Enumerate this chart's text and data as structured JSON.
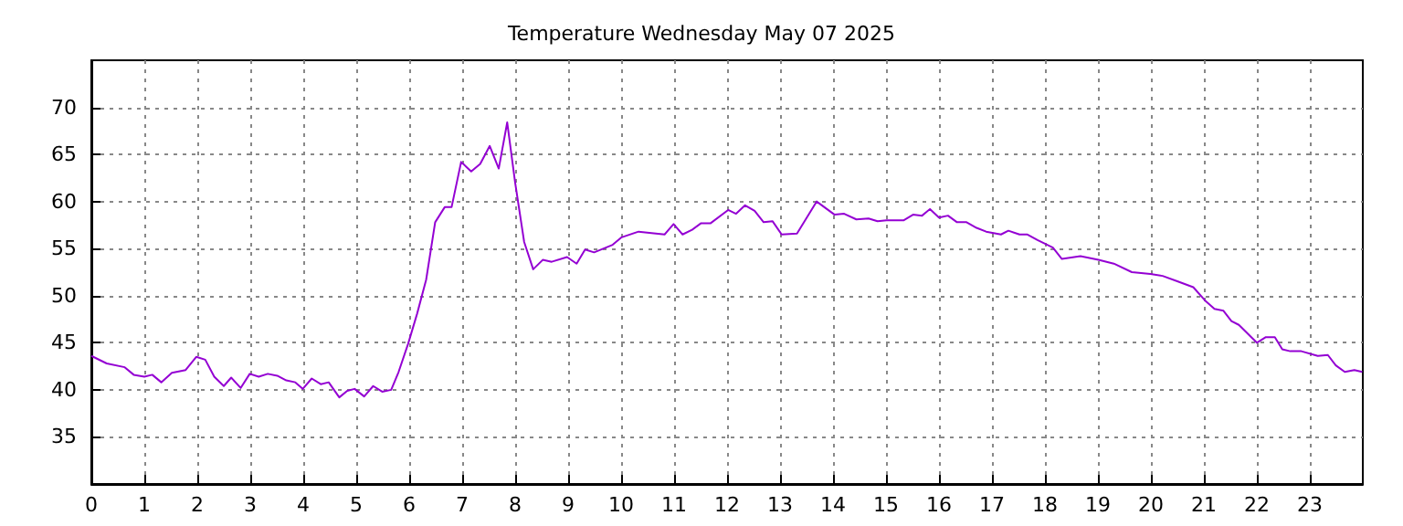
{
  "chart_data": {
    "type": "line",
    "title": "Temperature Wednesday May 07 2025",
    "x": [
      0,
      0.29,
      0.63,
      0.8,
      1.0,
      1.15,
      1.32,
      1.52,
      1.78,
      1.98,
      2.15,
      2.32,
      2.5,
      2.64,
      2.82,
      2.99,
      3.16,
      3.33,
      3.51,
      3.68,
      3.85,
      3.99,
      4.16,
      4.33,
      4.48,
      4.68,
      4.83,
      4.97,
      5.15,
      5.32,
      5.49,
      5.66,
      5.8,
      5.98,
      6.15,
      6.32,
      6.49,
      6.67,
      6.8,
      6.98,
      7.17,
      7.34,
      7.52,
      7.69,
      7.85,
      8.0,
      8.17,
      8.34,
      8.52,
      8.69,
      8.98,
      9.16,
      9.32,
      9.49,
      9.84,
      10.01,
      10.33,
      10.82,
      10.99,
      11.16,
      11.34,
      11.51,
      11.69,
      12.02,
      12.17,
      12.34,
      12.52,
      12.69,
      12.86,
      13.03,
      13.32,
      13.69,
      14.03,
      14.21,
      14.44,
      14.67,
      14.84,
      15.01,
      15.33,
      15.51,
      15.68,
      15.83,
      16.0,
      16.17,
      16.34,
      16.52,
      16.71,
      16.89,
      17.17,
      17.31,
      17.52,
      17.67,
      17.86,
      18.15,
      18.32,
      18.67,
      19.01,
      19.3,
      19.64,
      19.99,
      20.22,
      20.51,
      20.8,
      21.02,
      21.2,
      21.37,
      21.52,
      21.66,
      22.0,
      22.17,
      22.34,
      22.48,
      22.63,
      22.84,
      23.15,
      23.34,
      23.49,
      23.66,
      23.84,
      23.99
    ],
    "series": [
      {
        "color": "#9400d3",
        "values": [
          43.6,
          42.8,
          42.4,
          41.6,
          41.4,
          41.6,
          40.8,
          41.8,
          42.1,
          43.5,
          43.2,
          41.4,
          40.4,
          41.3,
          40.2,
          41.7,
          41.4,
          41.7,
          41.5,
          41.0,
          40.8,
          40.1,
          41.2,
          40.6,
          40.8,
          39.2,
          39.9,
          40.1,
          39.3,
          40.4,
          39.8,
          40.0,
          41.9,
          44.9,
          48.1,
          51.7,
          57.8,
          59.4,
          59.4,
          64.2,
          63.2,
          64.0,
          65.9,
          63.5,
          68.4,
          62.0,
          55.7,
          52.8,
          53.8,
          53.6,
          54.1,
          53.4,
          54.9,
          54.6,
          55.4,
          56.2,
          56.8,
          56.5,
          57.6,
          56.5,
          57.0,
          57.7,
          57.7,
          59.1,
          58.7,
          59.6,
          59.0,
          57.8,
          57.9,
          56.5,
          56.6,
          60.0,
          58.6,
          58.7,
          58.1,
          58.2,
          57.9,
          58.0,
          58.0,
          58.6,
          58.5,
          59.2,
          58.3,
          58.5,
          57.8,
          57.8,
          57.2,
          56.8,
          56.5,
          56.9,
          56.5,
          56.5,
          55.9,
          55.1,
          53.9,
          54.2,
          53.8,
          53.4,
          52.5,
          52.3,
          52.1,
          51.5,
          50.9,
          49.5,
          48.6,
          48.4,
          47.3,
          46.9,
          45.0,
          45.6,
          45.6,
          44.3,
          44.1,
          44.1,
          43.6,
          43.7,
          42.6,
          41.9,
          42.1,
          41.9
        ]
      }
    ],
    "xlim": [
      0,
      24
    ],
    "xticks": [
      0,
      1,
      2,
      3,
      4,
      5,
      6,
      7,
      8,
      9,
      10,
      11,
      12,
      13,
      14,
      15,
      16,
      17,
      18,
      19,
      20,
      21,
      22,
      23
    ],
    "ylim": [
      30,
      75
    ],
    "yticks": [
      35,
      40,
      45,
      50,
      55,
      60,
      65,
      70
    ],
    "grid": true,
    "marker": "none",
    "line_style": "solid"
  }
}
